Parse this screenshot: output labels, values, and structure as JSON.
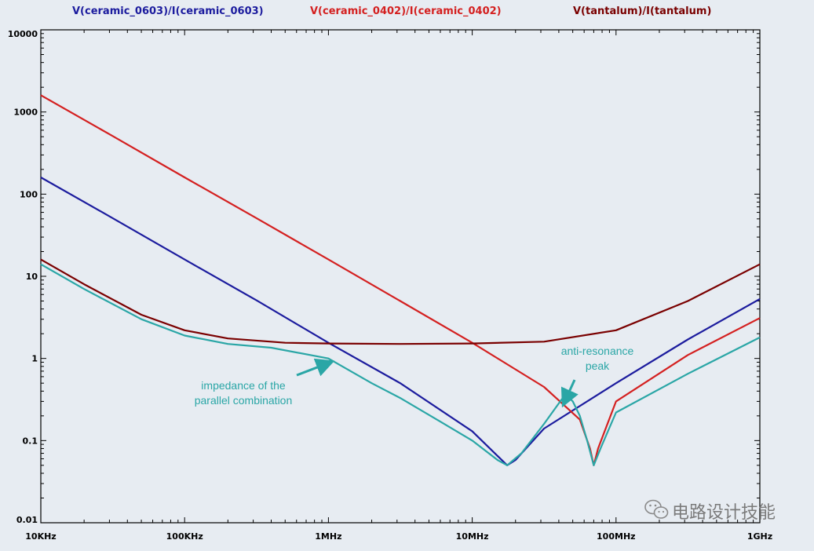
{
  "chart_data": {
    "type": "line",
    "x_scale": "log",
    "y_scale": "log",
    "xlim": [
      10000,
      1000000000
    ],
    "ylim": [
      0.01,
      10000
    ],
    "grid": false,
    "legend_placement": "top",
    "x_ticks": [
      {
        "value": 10000,
        "label": "10KHz"
      },
      {
        "value": 100000,
        "label": "100KHz"
      },
      {
        "value": 1000000,
        "label": "1MHz"
      },
      {
        "value": 10000000,
        "label": "10MHz"
      },
      {
        "value": 100000000,
        "label": "100MHz"
      },
      {
        "value": 1000000000,
        "label": "1GHz"
      }
    ],
    "y_ticks": [
      {
        "value": 10000,
        "label": "10000"
      },
      {
        "value": 1000,
        "label": "1000"
      },
      {
        "value": 100,
        "label": "100"
      },
      {
        "value": 10,
        "label": "10"
      },
      {
        "value": 1,
        "label": "1"
      },
      {
        "value": 0.1,
        "label": "0.1"
      },
      {
        "value": 0.01,
        "label": "0.01"
      }
    ],
    "series": [
      {
        "name": "V(ceramic_0603)/I(ceramic_0603)",
        "color": "#1c1c9e",
        "points": [
          [
            10000,
            160
          ],
          [
            31600,
            51
          ],
          [
            100000,
            16
          ],
          [
            316000,
            5.1
          ],
          [
            1000000,
            1.55
          ],
          [
            3160000,
            0.5
          ],
          [
            10000000,
            0.13
          ],
          [
            15000000,
            0.065
          ],
          [
            17500000,
            0.05
          ],
          [
            20000000,
            0.058
          ],
          [
            31600000,
            0.14
          ],
          [
            100000000,
            0.5
          ],
          [
            316000000,
            1.7
          ],
          [
            1000000000,
            5.3
          ]
        ]
      },
      {
        "name": "V(ceramic_0402)/I(ceramic_0402)",
        "color": "#d42020",
        "points": [
          [
            10000,
            1600
          ],
          [
            31600,
            510
          ],
          [
            100000,
            160
          ],
          [
            316000,
            51
          ],
          [
            1000000,
            16
          ],
          [
            3160000,
            5
          ],
          [
            10000000,
            1.55
          ],
          [
            31600000,
            0.45
          ],
          [
            56000000,
            0.18
          ],
          [
            66000000,
            0.08
          ],
          [
            70000000,
            0.05
          ],
          [
            75000000,
            0.08
          ],
          [
            100000000,
            0.3
          ],
          [
            316000000,
            1.1
          ],
          [
            1000000000,
            3.1
          ]
        ]
      },
      {
        "name": "V(tantalum)/I(tantalum)",
        "color": "#7a0000",
        "points": [
          [
            10000,
            16
          ],
          [
            20000,
            8
          ],
          [
            50000,
            3.4
          ],
          [
            100000,
            2.2
          ],
          [
            200000,
            1.75
          ],
          [
            500000,
            1.55
          ],
          [
            1000000,
            1.52
          ],
          [
            3160000,
            1.5
          ],
          [
            10000000,
            1.52
          ],
          [
            31600000,
            1.6
          ],
          [
            100000000,
            2.2
          ],
          [
            316000000,
            5
          ],
          [
            1000000000,
            14
          ]
        ]
      },
      {
        "name": "",
        "color": "#2aa6a6",
        "points": [
          [
            10000,
            14
          ],
          [
            20000,
            7
          ],
          [
            50000,
            3
          ],
          [
            100000,
            1.9
          ],
          [
            200000,
            1.5
          ],
          [
            400000,
            1.35
          ],
          [
            1000000,
            1.0
          ],
          [
            2000000,
            0.5
          ],
          [
            3160000,
            0.33
          ],
          [
            6000000,
            0.17
          ],
          [
            10000000,
            0.1
          ],
          [
            15000000,
            0.058
          ],
          [
            17500000,
            0.05
          ],
          [
            22000000,
            0.07
          ],
          [
            31600000,
            0.16
          ],
          [
            42000000,
            0.32
          ],
          [
            45000000,
            0.36
          ],
          [
            50000000,
            0.3
          ],
          [
            56000000,
            0.2
          ],
          [
            63000000,
            0.1
          ],
          [
            70000000,
            0.05
          ],
          [
            78000000,
            0.08
          ],
          [
            100000000,
            0.22
          ],
          [
            316000000,
            0.65
          ],
          [
            1000000000,
            1.8
          ]
        ]
      }
    ],
    "annotations": [
      {
        "text_lines": [
          "impedance of the",
          "parallel combination"
        ],
        "arrow_target": [
          1100000,
          1.0
        ]
      },
      {
        "text_lines": [
          "anti-resonance",
          "peak"
        ],
        "arrow_target": [
          43000000,
          0.36
        ]
      }
    ]
  },
  "watermark": {
    "icon": "wechat-icon",
    "text": "电路设计技能"
  }
}
